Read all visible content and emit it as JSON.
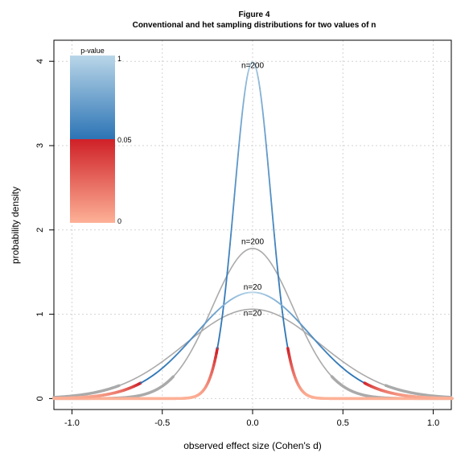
{
  "chart_data": {
    "type": "line",
    "title": "Figure 4",
    "subtitle": "Conventional and het sampling distributions for two values of n",
    "xlabel": "observed effect size (Cohen's d)",
    "ylabel": "probability density",
    "xlim": [
      -1.1,
      1.1
    ],
    "ylim": [
      -0.13,
      4.25
    ],
    "xticks": [
      -1.0,
      -0.5,
      0.0,
      0.5,
      1.0
    ],
    "xtick_labels": [
      "-1.0",
      "-0.5",
      "0.0",
      "0.5",
      "1.0"
    ],
    "yticks": [
      0,
      1,
      2,
      3,
      4
    ],
    "ytick_labels": [
      "0",
      "1",
      "2",
      "3",
      "4"
    ],
    "grid": true,
    "series": [
      {
        "kind": "conventional",
        "peak": 3.99,
        "sd": 0.1,
        "color_bar": true
      },
      {
        "kind": "conventional",
        "peak": 1.26,
        "sd": 0.316,
        "color_bar": true
      },
      {
        "kind": "het",
        "peak": 1.78,
        "sd": 0.224,
        "color": "#aaaaaa"
      },
      {
        "kind": "het",
        "peak": 1.06,
        "sd": 0.376,
        "color": "#aaaaaa"
      }
    ],
    "annotations": [
      {
        "text": "n=200",
        "x": 0.0,
        "y": 3.92
      },
      {
        "text": "n=200",
        "x": 0.0,
        "y": 1.83
      },
      {
        "text": "n=20",
        "x": 0.0,
        "y": 1.29
      },
      {
        "text": "n=20",
        "x": 0.0,
        "y": 0.98
      }
    ],
    "colorbar": {
      "title": "p-value",
      "labels": [
        "1",
        "0.05",
        "0"
      ],
      "values": [
        1,
        0.05,
        0
      ],
      "blue_top": "#b9d6e8",
      "blue_bottom": "#2c74b5",
      "red_top": "#cf2027",
      "red_bottom": "#fdb197"
    }
  }
}
